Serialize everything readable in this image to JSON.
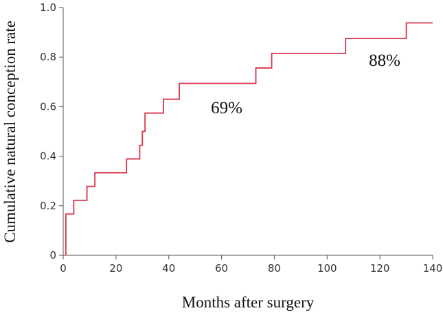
{
  "chart_data": {
    "type": "step",
    "x_label": "Months after surgery",
    "y_label": "Cumulative natural conception rate",
    "x": [
      1,
      1,
      4,
      9,
      12,
      24,
      29,
      30,
      31,
      38,
      44,
      73,
      79,
      107,
      130,
      140
    ],
    "series": [
      {
        "color": "#d8344a",
        "values": [
          0,
          0.167,
          0.222,
          0.278,
          0.333,
          0.389,
          0.444,
          0.5,
          0.574,
          0.63,
          0.694,
          0.756,
          0.815,
          0.875,
          0.938,
          0.938
        ]
      }
    ],
    "annotations": [
      "69%",
      "88%"
    ],
    "xlim": [
      0,
      140
    ],
    "xticks": [
      0,
      20,
      40,
      60,
      80,
      100,
      120,
      140
    ],
    "ylim": [
      0,
      1
    ],
    "yticks": [
      0,
      0.2,
      0.4,
      0.6,
      0.8,
      {
        "value": 1,
        "label": "1.0"
      }
    ]
  }
}
